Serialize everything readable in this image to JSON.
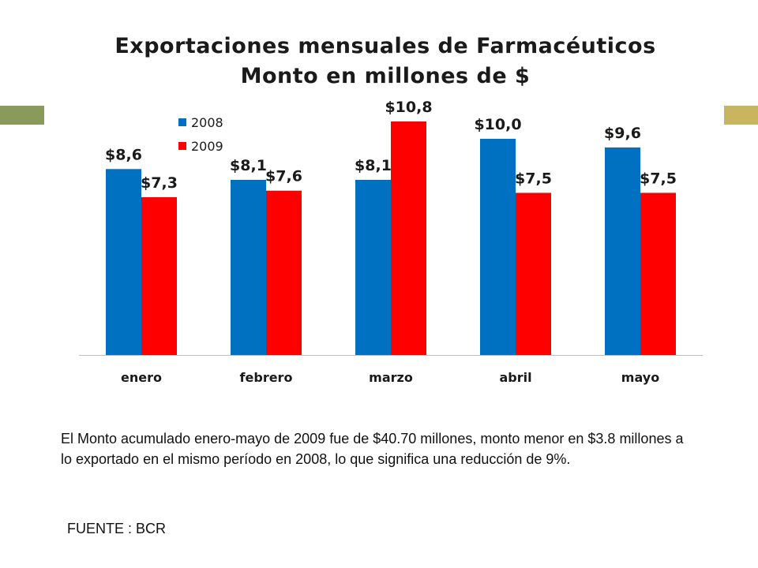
{
  "colors": {
    "series_2008": "#0070C0",
    "series_2009": "#FF0000",
    "accent_left": "#8A9A5B",
    "accent_right": "#C8B560",
    "axis": "#BFBFBF",
    "text": "#1A1A1A"
  },
  "chart_data": {
    "type": "bar",
    "title": "Exportaciones mensuales de Farmacéuticos",
    "subtitle": "Monto en millones de $",
    "categories": [
      "enero",
      "febrero",
      "marzo",
      "abril",
      "mayo"
    ],
    "series": [
      {
        "name": "2008",
        "values": [
          8.6,
          8.1,
          8.1,
          10.0,
          9.6
        ],
        "labels": [
          "$8,6",
          "$8,1",
          "$8,1",
          "$10,0",
          "$9,6"
        ]
      },
      {
        "name": "2009",
        "values": [
          7.3,
          7.6,
          10.8,
          7.5,
          7.5
        ],
        "labels": [
          "$7,3",
          "$7,6",
          "$10,8",
          "$7,5",
          "$7,5"
        ]
      }
    ],
    "ylim": [
      0,
      10.8
    ],
    "grid": false,
    "legend_position": "top-left"
  },
  "note": "El Monto acumulado enero-mayo de 2009 fue de $40.70 millones, monto menor en $3.8 millones a lo exportado en el mismo período en 2008, lo que significa una reducción de 9%.",
  "source": "FUENTE : BCR"
}
